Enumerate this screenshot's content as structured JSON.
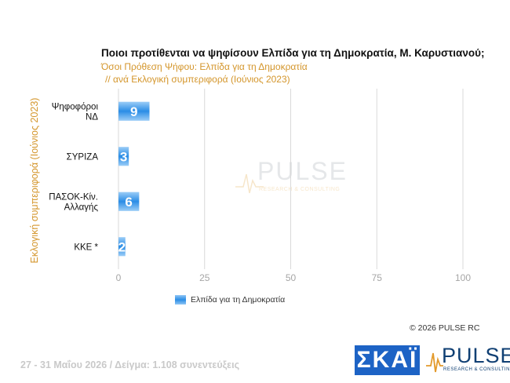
{
  "chart_data": {
    "type": "bar",
    "orientation": "horizontal",
    "title": "Ποιοι προτίθενται να ψηφίσουν Ελπίδα για τη Δημοκρατία, Μ. Καρυστιανού;",
    "subtitle_lines": [
      "Όσοι Πρόθεση Ψήφου: Ελπίδα για τη Δημοκρατία",
      " // ανά Εκλογική  συμπεριφορά (Ιούνιος 2023)"
    ],
    "ylabel": "Εκλογική  συμπεριφορά (Ιούνιος 2023)",
    "xlabel": "",
    "categories": [
      [
        "Ψηφοφόροι",
        "ΝΔ"
      ],
      [
        "ΣΥΡΙΖΑ"
      ],
      [
        "ΠΑΣΟΚ-Κίν.",
        "Αλλαγής"
      ],
      [
        "ΚΚΕ *"
      ]
    ],
    "series": [
      {
        "name": "Ελπίδα για τη Δημοκρατία",
        "values": [
          9,
          3,
          6,
          2
        ],
        "color": "#2b8de6"
      }
    ],
    "xlim": [
      0,
      100
    ],
    "xticks": [
      "0",
      "25",
      "50",
      "75",
      "100"
    ],
    "grid": true,
    "legend_position": "bottom-left"
  },
  "copyright": "©  2026  PULSE RC",
  "footer": "27 - 31  Μαΐου 2026  /  Δείγμα:  1.108 συνεντεύξεις",
  "logos": {
    "skai": "ΣΚΑΪ",
    "pulse": "PULSE",
    "pulse_tagline": "RESEARCH & CONSULTING"
  },
  "colors": {
    "accent": "#d4962c",
    "bar": "#2b8de6",
    "grid": "#d9d9d9",
    "brand_blue": "#1d63c5"
  }
}
